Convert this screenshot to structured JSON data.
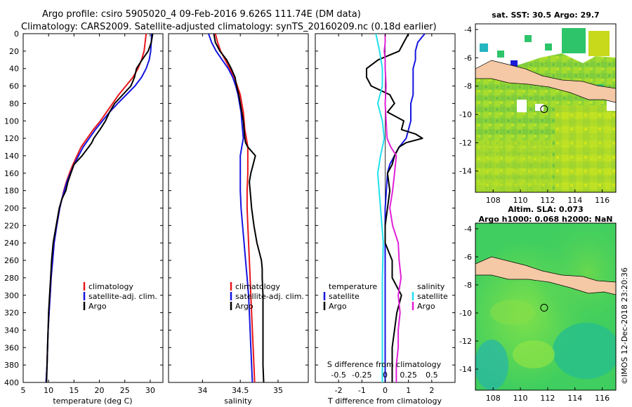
{
  "header": {
    "title_line1": "Argo profile: csiro 5905020_4 09-Feb-2016 9.626S 111.74E (DM data)",
    "title_line2": "Climatology: CARS2009. Satellite-adjusted climatology: synTS_20160209.nc (0.18d earlier)"
  },
  "colors": {
    "climatology": "#e8161b",
    "satellite": "#1515e0",
    "argo": "#000000",
    "sat_salinity": "#22e0ee",
    "clim_salinity": "#e020d8",
    "land": "#f5c8a6"
  },
  "depth_ticks": [
    "0",
    "20",
    "40",
    "60",
    "80",
    "100",
    "120",
    "140",
    "160",
    "180",
    "200",
    "220",
    "240",
    "260",
    "280",
    "300",
    "320",
    "340",
    "360",
    "380",
    "400"
  ],
  "chart_data": [
    {
      "type": "line",
      "name": "temperature",
      "xlabel": "temperature (deg C)",
      "ylabel": "",
      "xlim": [
        5,
        32.5
      ],
      "ylim": [
        400,
        0
      ],
      "xticks": [
        5,
        10,
        15,
        20,
        25,
        30
      ],
      "xtick_labels": [
        "5",
        "10",
        "15",
        "20",
        "25",
        "30"
      ],
      "legend": {
        "position": "right-middle",
        "items": [
          "climatology",
          "satellite-adj. clim.",
          "Argo"
        ]
      },
      "series": [
        {
          "name": "climatology",
          "color": "#e8161b",
          "depth": [
            0,
            10,
            20,
            30,
            40,
            50,
            60,
            70,
            80,
            90,
            100,
            110,
            120,
            130,
            140,
            150,
            160,
            170,
            180,
            190,
            200,
            220,
            240,
            260,
            280,
            300,
            320,
            340,
            360,
            380,
            400
          ],
          "values": [
            29.2,
            29.0,
            28.8,
            28.3,
            27.6,
            26.6,
            25.2,
            23.8,
            22.6,
            21.4,
            20.2,
            18.8,
            17.6,
            16.4,
            15.6,
            14.8,
            14.1,
            13.5,
            13.0,
            12.6,
            12.2,
            11.6,
            11.1,
            10.8,
            10.5,
            10.3,
            10.1,
            9.9,
            9.8,
            9.7,
            9.5
          ]
        },
        {
          "name": "satellite-adj. clim.",
          "color": "#1515e0",
          "depth": [
            0,
            10,
            20,
            30,
            40,
            50,
            60,
            70,
            80,
            90,
            100,
            110,
            120,
            130,
            140,
            150,
            160,
            170,
            180,
            190,
            200,
            220,
            240,
            260,
            280,
            300,
            320,
            340,
            360,
            380,
            400
          ],
          "values": [
            30.3,
            30.2,
            30.1,
            29.8,
            29.2,
            28.3,
            27.0,
            25.3,
            23.6,
            22.0,
            20.6,
            19.2,
            18.0,
            16.8,
            15.9,
            15.0,
            14.3,
            13.6,
            13.1,
            12.6,
            12.2,
            11.6,
            11.1,
            10.8,
            10.5,
            10.3,
            10.1,
            9.9,
            9.8,
            9.7,
            9.5
          ]
        },
        {
          "name": "Argo",
          "color": "#000000",
          "depth": [
            0,
            10,
            20,
            30,
            40,
            50,
            60,
            70,
            80,
            90,
            100,
            110,
            120,
            125,
            130,
            140,
            150,
            160,
            170,
            180,
            190,
            200,
            220,
            240,
            260,
            280,
            300,
            320,
            340,
            360,
            380,
            400
          ],
          "values": [
            30.5,
            30.2,
            29.6,
            28.4,
            27.3,
            26.9,
            26.2,
            24.6,
            23.0,
            22.0,
            21.2,
            20.1,
            18.9,
            18.5,
            17.9,
            16.6,
            15.0,
            14.4,
            13.8,
            13.4,
            12.6,
            12.1,
            11.5,
            10.9,
            10.6,
            10.4,
            10.2,
            10.0,
            9.9,
            9.8,
            9.7,
            9.6
          ]
        }
      ]
    },
    {
      "type": "line",
      "name": "salinity",
      "xlabel": "salinity",
      "xlim": [
        33.55,
        35.4
      ],
      "ylim": [
        400,
        0
      ],
      "xticks": [
        34,
        34.5,
        35
      ],
      "xtick_labels": [
        "34",
        "34.5",
        "35"
      ],
      "legend": {
        "position": "right-middle",
        "items": [
          "climatology",
          "satellite-adj. clim.",
          "Argo"
        ]
      },
      "series": [
        {
          "name": "climatology",
          "color": "#e8161b",
          "depth": [
            0,
            10,
            20,
            30,
            40,
            50,
            60,
            70,
            80,
            90,
            100,
            110,
            120,
            130,
            140,
            160,
            180,
            200,
            220,
            240,
            260,
            280,
            300,
            320,
            340,
            360,
            380,
            400
          ],
          "values": [
            34.17,
            34.2,
            34.24,
            34.3,
            34.36,
            34.42,
            34.46,
            34.5,
            34.52,
            34.54,
            34.55,
            34.56,
            34.58,
            34.6,
            34.6,
            34.6,
            34.59,
            34.59,
            34.6,
            34.61,
            34.62,
            34.63,
            34.64,
            34.65,
            34.66,
            34.67,
            34.68,
            34.69
          ]
        },
        {
          "name": "satellite-adj. clim.",
          "color": "#1515e0",
          "depth": [
            0,
            10,
            20,
            30,
            40,
            50,
            60,
            70,
            80,
            90,
            100,
            110,
            120,
            130,
            140,
            160,
            180,
            200,
            220,
            240,
            260,
            280,
            300,
            320,
            340,
            360,
            380,
            400
          ],
          "values": [
            34.08,
            34.12,
            34.18,
            34.26,
            34.34,
            34.4,
            34.44,
            34.47,
            34.49,
            34.51,
            34.52,
            34.53,
            34.54,
            34.52,
            34.5,
            34.5,
            34.5,
            34.51,
            34.53,
            34.55,
            34.57,
            34.59,
            34.61,
            34.62,
            34.63,
            34.64,
            34.65,
            34.66
          ]
        },
        {
          "name": "Argo",
          "color": "#000000",
          "depth": [
            0,
            10,
            20,
            30,
            40,
            50,
            60,
            70,
            80,
            90,
            100,
            110,
            120,
            125,
            130,
            135,
            140,
            150,
            160,
            170,
            180,
            200,
            220,
            240,
            250,
            260,
            270,
            280,
            300,
            320,
            340,
            360,
            380,
            400
          ],
          "values": [
            34.15,
            34.17,
            34.23,
            34.32,
            34.38,
            34.43,
            34.45,
            34.48,
            34.5,
            34.52,
            34.54,
            34.55,
            34.56,
            34.57,
            34.6,
            34.65,
            34.7,
            34.67,
            34.64,
            34.62,
            34.63,
            34.65,
            34.68,
            34.72,
            34.75,
            34.78,
            34.79,
            34.79,
            34.8,
            34.8,
            34.8,
            34.8,
            34.8,
            34.81
          ]
        }
      ]
    },
    {
      "type": "line",
      "name": "difference",
      "xlabel": "T difference from climatology",
      "xlim": [
        -3,
        3
      ],
      "ylim": [
        400,
        0
      ],
      "xticks": [
        -2,
        -1,
        0,
        1,
        2
      ],
      "xtick_labels": [
        "-2",
        "-1",
        "0",
        "1",
        "2"
      ],
      "secondary_axis": {
        "label": "S difference from climatology",
        "ticks": [
          -0.5,
          -0.25,
          0,
          0.25,
          0.5
        ],
        "tick_labels": [
          "-0.5",
          "-0.25",
          "0",
          "0.25",
          "0.5"
        ],
        "range": [
          -0.75,
          0.75
        ]
      },
      "legend_temperature": {
        "heading": "temperature",
        "items": [
          "satellite",
          "Argo"
        ]
      },
      "legend_salinity": {
        "heading": "salinity",
        "items": [
          "satellite",
          "Argo"
        ]
      },
      "series": [
        {
          "name": "T satellite",
          "color": "#1515e0",
          "depth": [
            0,
            10,
            20,
            30,
            40,
            50,
            60,
            70,
            80,
            100,
            120,
            130,
            140,
            150,
            160,
            200,
            240,
            280,
            320,
            360,
            400
          ],
          "values": [
            1.7,
            1.4,
            1.3,
            1.3,
            1.2,
            1.2,
            1.2,
            1.2,
            1.1,
            1.1,
            0.9,
            0.6,
            0.4,
            0.2,
            0.1,
            0.0,
            0.0,
            0.0,
            0.0,
            0.0,
            0.0
          ]
        },
        {
          "name": "T Argo",
          "color": "#000000",
          "depth": [
            0,
            5,
            10,
            20,
            30,
            40,
            50,
            55,
            60,
            70,
            80,
            90,
            100,
            110,
            115,
            120,
            125,
            130,
            140,
            150,
            160,
            180,
            200,
            220,
            240,
            260,
            280,
            300,
            320,
            340,
            360,
            380,
            400
          ],
          "values": [
            1.0,
            0.9,
            0.8,
            0.6,
            -0.3,
            -0.8,
            -0.8,
            -0.7,
            -0.6,
            0.2,
            0.4,
            0.1,
            0.8,
            0.7,
            1.3,
            1.6,
            0.9,
            0.6,
            0.4,
            0.3,
            0.1,
            0.2,
            0.1,
            0.0,
            0.0,
            0.3,
            0.3,
            0.7,
            0.5,
            0.4,
            0.3,
            0.3,
            0.3
          ]
        },
        {
          "name": "S satellite",
          "color": "#22e0ee",
          "depth": [
            0,
            10,
            20,
            40,
            60,
            80,
            100,
            120,
            140,
            160,
            200,
            240,
            280,
            320,
            360,
            400
          ],
          "values": [
            -0.1,
            -0.08,
            -0.06,
            -0.03,
            -0.03,
            -0.08,
            -0.03,
            -0.01,
            -0.05,
            -0.08,
            -0.05,
            -0.02,
            -0.03,
            -0.03,
            -0.03,
            -0.03
          ]
        },
        {
          "name": "S Argo",
          "color": "#e020d8",
          "depth": [
            0,
            10,
            20,
            30,
            40,
            60,
            80,
            100,
            120,
            130,
            140,
            160,
            180,
            200,
            220,
            240,
            260,
            280,
            300,
            320,
            340,
            360,
            380,
            400
          ],
          "values": [
            0.0,
            0.0,
            -0.01,
            0.0,
            0.0,
            0.01,
            0.0,
            0.01,
            0.02,
            0.06,
            0.12,
            0.1,
            0.08,
            0.05,
            0.08,
            0.14,
            0.15,
            0.17,
            0.14,
            0.16,
            0.14,
            0.14,
            0.12,
            0.12
          ]
        }
      ]
    }
  ],
  "maps": {
    "sst": {
      "title": "sat. SST: 30.5 Argo: 29.7",
      "xticks": [
        "108",
        "110",
        "112",
        "114",
        "116"
      ],
      "yticks": [
        "-4",
        "-6",
        "-8",
        "-10",
        "-12",
        "-14"
      ],
      "xlim": [
        106.7,
        117
      ],
      "ylim": [
        -15.5,
        -3.6
      ],
      "argo_lon": 111.74,
      "argo_lat": -9.626
    },
    "sla": {
      "title_line1": "Altim. SLA: 0.073",
      "title_line2": "Argo h1000: 0.068 h2000: NaN",
      "xticks": [
        "108",
        "110",
        "112",
        "114",
        "116"
      ],
      "yticks": [
        "-4",
        "-6",
        "-8",
        "-10",
        "-12",
        "-14"
      ],
      "xlim": [
        106.7,
        117
      ],
      "ylim": [
        -15.5,
        -3.6
      ],
      "argo_lon": 111.74,
      "argo_lat": -9.626
    }
  },
  "credit": "©IMOS 12-Dec-2018 23:20:36"
}
